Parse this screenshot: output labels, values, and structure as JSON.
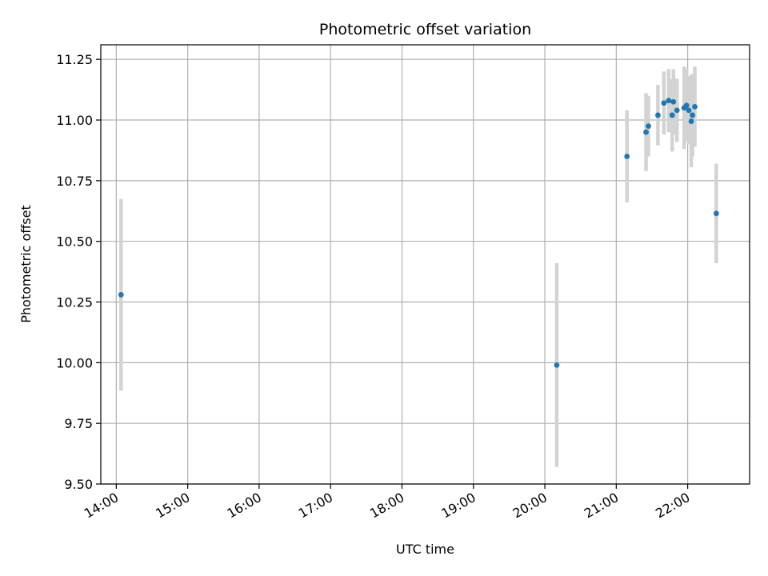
{
  "chart_data": {
    "type": "scatter",
    "title": "Photometric offset variation",
    "xlabel": "UTC time",
    "ylabel": "Photometric offset",
    "x_ticks": [
      "14:00",
      "15:00",
      "16:00",
      "17:00",
      "18:00",
      "19:00",
      "20:00",
      "21:00",
      "22:00"
    ],
    "y_ticks": [
      "9.50",
      "9.75",
      "10.00",
      "10.25",
      "10.50",
      "10.75",
      "11.00",
      "11.25"
    ],
    "xlim": [
      "13:47",
      "22:52"
    ],
    "ylim": [
      9.5,
      11.31
    ],
    "grid": true,
    "marker_color": "#1f77b4",
    "errorbar_color": "#d3d3d3",
    "points": [
      {
        "t": "14:04",
        "y": 10.28,
        "err": 0.395
      },
      {
        "t": "20:10",
        "y": 9.99,
        "err": 0.42
      },
      {
        "t": "21:09",
        "y": 10.85,
        "err": 0.19
      },
      {
        "t": "21:25",
        "y": 10.95,
        "err": 0.16
      },
      {
        "t": "21:27",
        "y": 10.975,
        "err": 0.125
      },
      {
        "t": "21:35",
        "y": 11.02,
        "err": 0.125
      },
      {
        "t": "21:40",
        "y": 11.07,
        "err": 0.13
      },
      {
        "t": "21:44",
        "y": 11.08,
        "err": 0.13
      },
      {
        "t": "21:47",
        "y": 11.02,
        "err": 0.15
      },
      {
        "t": "21:48",
        "y": 11.075,
        "err": 0.135
      },
      {
        "t": "21:51",
        "y": 11.04,
        "err": 0.13
      },
      {
        "t": "21:57",
        "y": 11.05,
        "err": 0.17
      },
      {
        "t": "21:59",
        "y": 11.06,
        "err": 0.15
      },
      {
        "t": "22:01",
        "y": 11.04,
        "err": 0.14
      },
      {
        "t": "22:03",
        "y": 10.995,
        "err": 0.19
      },
      {
        "t": "22:04",
        "y": 11.02,
        "err": 0.17
      },
      {
        "t": "22:06",
        "y": 11.055,
        "err": 0.165
      },
      {
        "t": "22:24",
        "y": 10.615,
        "err": 0.205
      }
    ]
  }
}
